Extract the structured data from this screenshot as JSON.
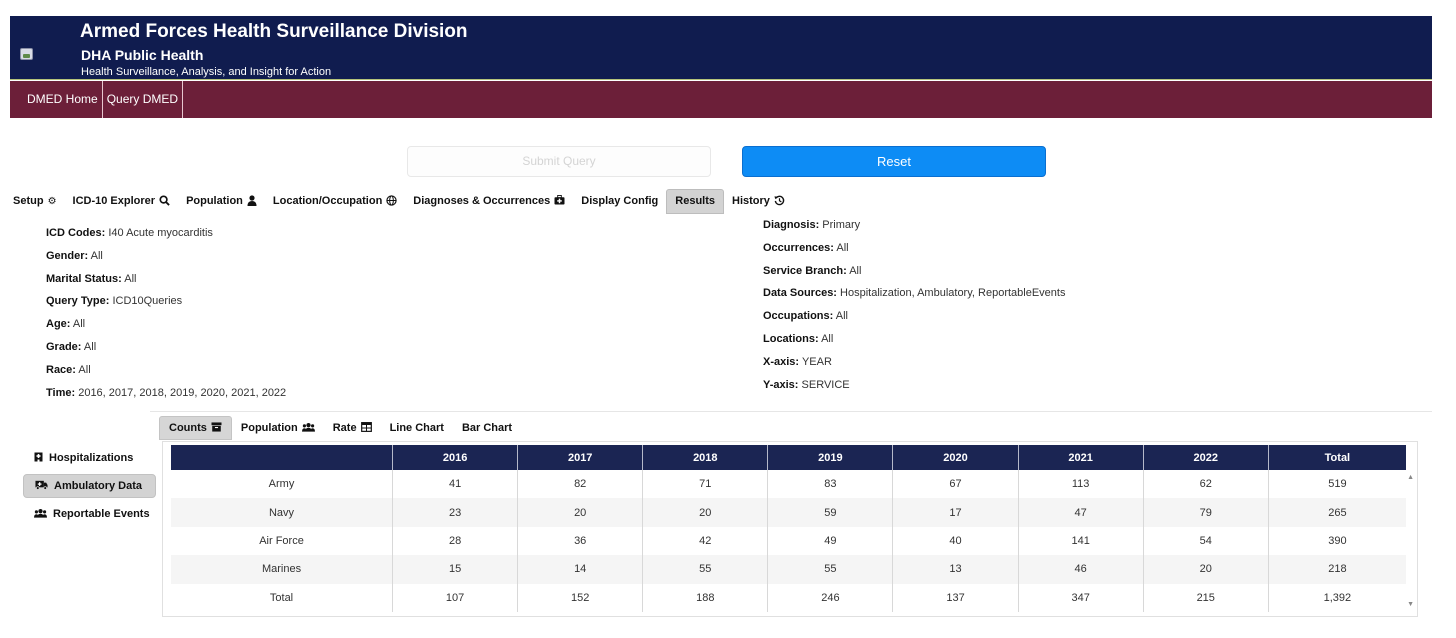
{
  "header": {
    "title": "Armed Forces Health Surveillance Division",
    "subtitle": "DHA Public Health",
    "tagline": "Health Surveillance, Analysis, and Insight for Action",
    "colors": {
      "banner": "#101c4f",
      "navbar": "#6c1f39",
      "accent": "#0d8cf5"
    }
  },
  "nav": {
    "items": [
      "DMED Home",
      "Query DMED"
    ]
  },
  "actions": {
    "submit": "Submit Query",
    "reset": "Reset"
  },
  "tabs": [
    {
      "label": "Setup",
      "icon": "gears-icon"
    },
    {
      "label": "ICD-10 Explorer",
      "icon": "search-icon"
    },
    {
      "label": "Population",
      "icon": "user-icon"
    },
    {
      "label": "Location/Occupation",
      "icon": "globe-icon"
    },
    {
      "label": "Diagnoses & Occurrences",
      "icon": "medkit-icon"
    },
    {
      "label": "Display Config",
      "icon": ""
    },
    {
      "label": "Results",
      "icon": "",
      "active": true
    },
    {
      "label": "History",
      "icon": "history-icon"
    }
  ],
  "summary": {
    "left": [
      {
        "key": "ICD Codes:",
        "value": "I40 Acute myocarditis"
      },
      {
        "key": "Gender:",
        "value": "All"
      },
      {
        "key": "Marital Status:",
        "value": "All"
      },
      {
        "key": "Query Type:",
        "value": "ICD10Queries"
      },
      {
        "key": "Age:",
        "value": "All"
      },
      {
        "key": "Grade:",
        "value": "All"
      },
      {
        "key": "Race:",
        "value": "All"
      },
      {
        "key": "Time:",
        "value": "2016, 2017, 2018, 2019, 2020, 2021, 2022"
      }
    ],
    "right": [
      {
        "key": "Diagnosis:",
        "value": "Primary"
      },
      {
        "key": "Occurrences:",
        "value": "All"
      },
      {
        "key": "Service Branch:",
        "value": "All"
      },
      {
        "key": "Data Sources:",
        "value": "Hospitalization, Ambulatory, ReportableEvents"
      },
      {
        "key": "Occupations:",
        "value": "All"
      },
      {
        "key": "Locations:",
        "value": "All"
      },
      {
        "key": "X-axis:",
        "value": "YEAR"
      },
      {
        "key": "Y-axis:",
        "value": "SERVICE"
      }
    ]
  },
  "subtabs": [
    {
      "label": "Counts",
      "icon": "archive-icon",
      "active": true
    },
    {
      "label": "Population",
      "icon": "users-icon"
    },
    {
      "label": "Rate",
      "icon": "table-icon"
    },
    {
      "label": "Line Chart",
      "icon": ""
    },
    {
      "label": "Bar Chart",
      "icon": ""
    }
  ],
  "sources": [
    {
      "label": "Hospitalizations",
      "icon": "hospital-icon"
    },
    {
      "label": "Ambulatory Data",
      "icon": "ambulance-icon",
      "active": true
    },
    {
      "label": "Reportable Events",
      "icon": "users-icon"
    }
  ],
  "table": {
    "headers": [
      "",
      "2016",
      "2017",
      "2018",
      "2019",
      "2020",
      "2021",
      "2022",
      "Total"
    ],
    "rows": [
      [
        "Army",
        "41",
        "82",
        "71",
        "83",
        "67",
        "113",
        "62",
        "519"
      ],
      [
        "Navy",
        "23",
        "20",
        "20",
        "59",
        "17",
        "47",
        "79",
        "265"
      ],
      [
        "Air Force",
        "28",
        "36",
        "42",
        "49",
        "40",
        "141",
        "54",
        "390"
      ],
      [
        "Marines",
        "15",
        "14",
        "55",
        "55",
        "13",
        "46",
        "20",
        "218"
      ],
      [
        "Total",
        "107",
        "152",
        "188",
        "246",
        "137",
        "347",
        "215",
        "1,392"
      ]
    ]
  }
}
